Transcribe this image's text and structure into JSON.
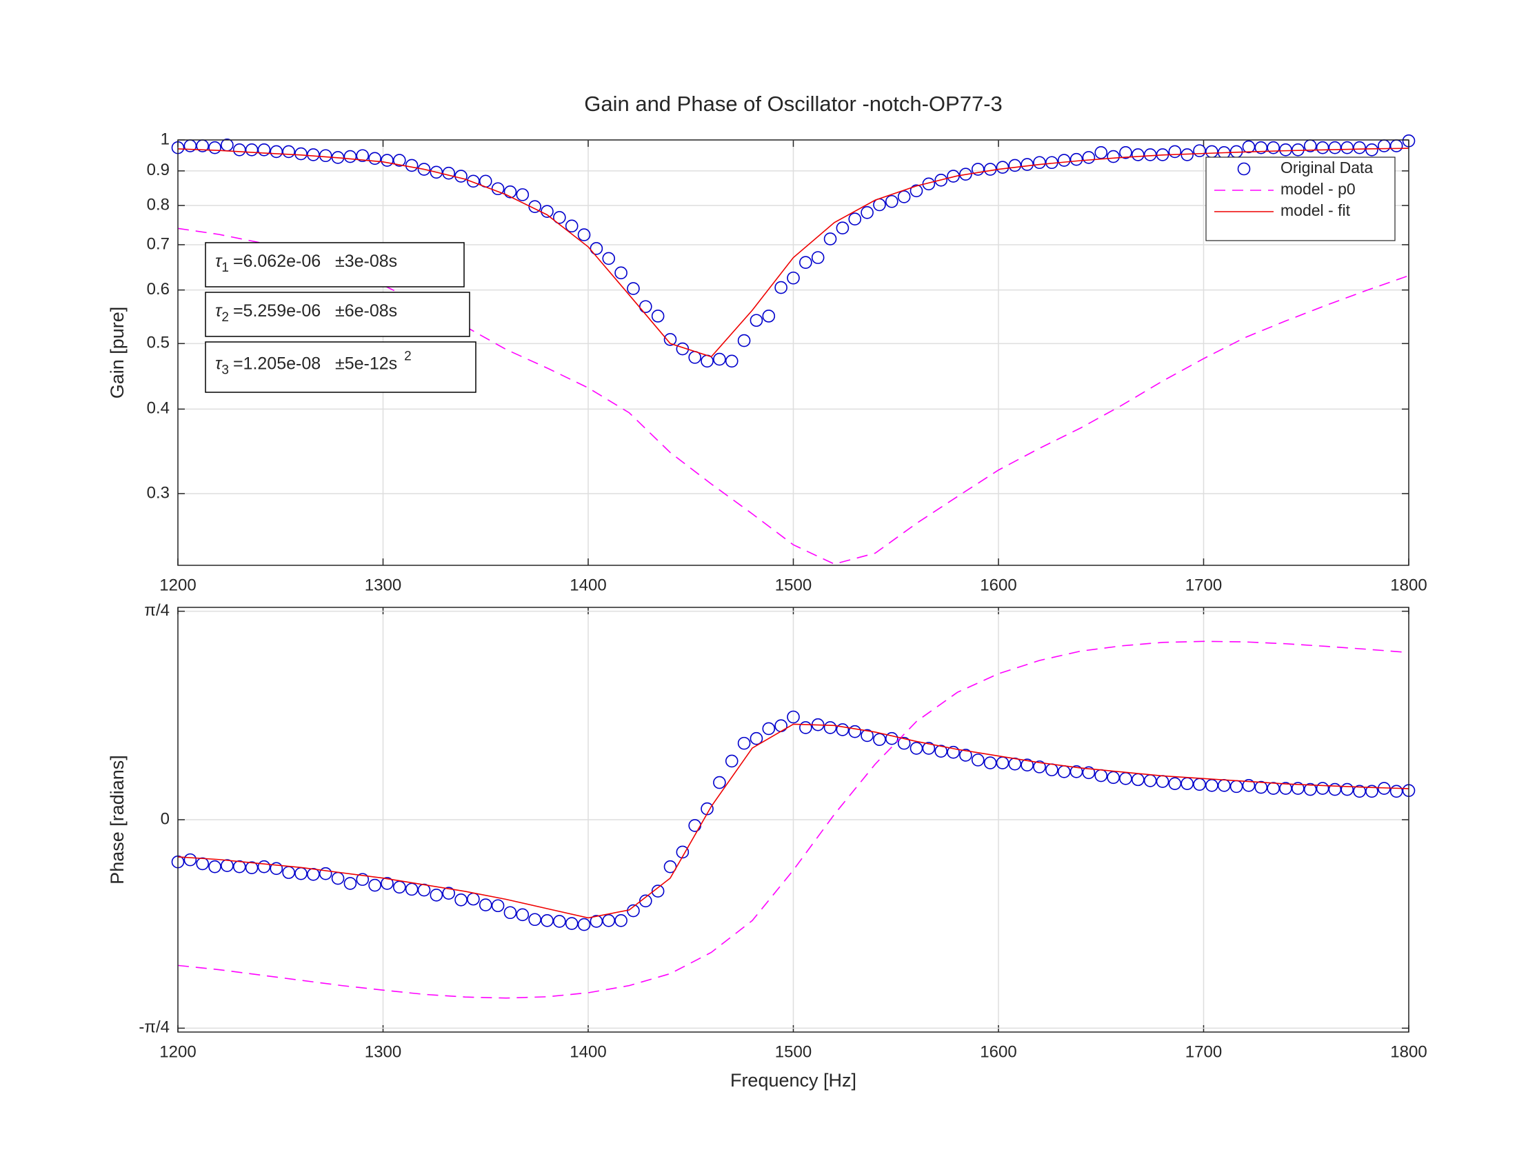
{
  "chart_data": [
    {
      "type": "line",
      "title": "Gain and Phase of Oscillator -notch-OP77-3",
      "ylabel": "Gain [pure]",
      "xlim": [
        1200,
        1800
      ],
      "xticks": [
        1200,
        1300,
        1400,
        1500,
        1600,
        1700,
        1800
      ],
      "ylim": [
        0.235,
        1
      ],
      "yticks": [
        0.3,
        0.4,
        0.5,
        0.6,
        0.7,
        0.8,
        0.9,
        1
      ],
      "log_y": true,
      "grid": true,
      "legend": "northeast",
      "series": [
        {
          "name": "Original Data",
          "color": "#0000cc",
          "marker": "o",
          "x": [
            1200,
            1206,
            1212,
            1218,
            1224,
            1230,
            1236,
            1242,
            1248,
            1254,
            1260,
            1266,
            1272,
            1278,
            1284,
            1290,
            1296,
            1302,
            1308,
            1314,
            1320,
            1326,
            1332,
            1338,
            1344,
            1350,
            1356,
            1362,
            1368,
            1374,
            1380,
            1386,
            1392,
            1398,
            1404,
            1410,
            1416,
            1422,
            1428,
            1434,
            1440,
            1446,
            1452,
            1458,
            1464,
            1470,
            1476,
            1482,
            1488,
            1494,
            1500,
            1506,
            1512,
            1518,
            1524,
            1530,
            1536,
            1542,
            1548,
            1554,
            1560,
            1566,
            1572,
            1578,
            1584,
            1590,
            1596,
            1602,
            1608,
            1614,
            1620,
            1626,
            1632,
            1638,
            1644,
            1650,
            1656,
            1662,
            1668,
            1674,
            1680,
            1686,
            1692,
            1698,
            1704,
            1710,
            1716,
            1722,
            1728,
            1734,
            1740,
            1746,
            1752,
            1758,
            1764,
            1770,
            1776,
            1782,
            1788,
            1794,
            1800
          ],
          "values": [
            0.974,
            0.98,
            0.98,
            0.974,
            0.983,
            0.967,
            0.967,
            0.967,
            0.961,
            0.961,
            0.954,
            0.951,
            0.948,
            0.942,
            0.945,
            0.948,
            0.939,
            0.933,
            0.933,
            0.917,
            0.905,
            0.896,
            0.893,
            0.884,
            0.869,
            0.869,
            0.847,
            0.838,
            0.83,
            0.797,
            0.784,
            0.768,
            0.746,
            0.724,
            0.691,
            0.668,
            0.636,
            0.603,
            0.567,
            0.549,
            0.507,
            0.491,
            0.477,
            0.471,
            0.474,
            0.471,
            0.505,
            0.541,
            0.549,
            0.605,
            0.625,
            0.659,
            0.67,
            0.714,
            0.741,
            0.764,
            0.781,
            0.802,
            0.811,
            0.824,
            0.841,
            0.861,
            0.872,
            0.884,
            0.89,
            0.905,
            0.905,
            0.911,
            0.917,
            0.92,
            0.926,
            0.926,
            0.933,
            0.936,
            0.942,
            0.958,
            0.945,
            0.958,
            0.951,
            0.951,
            0.951,
            0.961,
            0.951,
            0.964,
            0.961,
            0.958,
            0.961,
            0.977,
            0.974,
            0.974,
            0.967,
            0.967,
            0.98,
            0.974,
            0.974,
            0.974,
            0.974,
            0.967,
            0.98,
            0.98,
            0.997
          ]
        },
        {
          "name": "model - p0",
          "color": "#ff00ff",
          "linestyle": "--",
          "x": [
            1200,
            1220,
            1240,
            1260,
            1280,
            1300,
            1320,
            1340,
            1360,
            1380,
            1400,
            1420,
            1440,
            1460,
            1480,
            1500,
            1520,
            1540,
            1560,
            1580,
            1600,
            1620,
            1640,
            1660,
            1680,
            1700,
            1720,
            1740,
            1760,
            1780,
            1800
          ],
          "values": [
            0.74,
            0.725,
            0.705,
            0.68,
            0.645,
            0.61,
            0.57,
            0.53,
            0.49,
            0.46,
            0.43,
            0.395,
            0.345,
            0.31,
            0.28,
            0.252,
            0.236,
            0.245,
            0.271,
            0.297,
            0.325,
            0.35,
            0.375,
            0.405,
            0.44,
            0.475,
            0.51,
            0.54,
            0.57,
            0.6,
            0.63
          ]
        },
        {
          "name": "model - fit",
          "color": "#ee0000",
          "linestyle": "-",
          "x": [
            1200,
            1220,
            1240,
            1260,
            1280,
            1300,
            1320,
            1340,
            1360,
            1380,
            1400,
            1420,
            1440,
            1460,
            1480,
            1500,
            1520,
            1540,
            1560,
            1580,
            1600,
            1620,
            1640,
            1660,
            1680,
            1700,
            1720,
            1740,
            1760,
            1780,
            1800
          ],
          "values": [
            0.97,
            0.965,
            0.957,
            0.95,
            0.94,
            0.928,
            0.905,
            0.875,
            0.83,
            0.775,
            0.695,
            0.59,
            0.5,
            0.478,
            0.56,
            0.67,
            0.755,
            0.815,
            0.855,
            0.885,
            0.905,
            0.92,
            0.932,
            0.942,
            0.95,
            0.955,
            0.96,
            0.964,
            0.967,
            0.97,
            0.972
          ]
        }
      ],
      "annotations": [
        {
          "symbol": "τ",
          "subscript": "1",
          "text": "=6.062e-06   ±3e-08s"
        },
        {
          "symbol": "τ",
          "subscript": "2",
          "text": "=5.259e-06   ±6e-08s"
        },
        {
          "symbol": "τ",
          "subscript": "3",
          "text": "=1.205e-08   ±5e-12s",
          "superscript": "2"
        }
      ]
    },
    {
      "type": "line",
      "xlabel": "Frequency [Hz]",
      "ylabel": "Phase [radians]",
      "xlim": [
        1200,
        1800
      ],
      "xticks": [
        1200,
        1300,
        1400,
        1500,
        1600,
        1700,
        1800
      ],
      "ylim": [
        -0.8,
        0.8
      ],
      "yticks": [
        {
          "value": -0.7854,
          "label": "-π/4"
        },
        0,
        {
          "value": 0.7854,
          "label": "π/4"
        }
      ],
      "grid": true,
      "series": [
        {
          "color": "#0000cc",
          "marker": "o",
          "x": [
            1200,
            1206,
            1212,
            1218,
            1224,
            1230,
            1236,
            1242,
            1248,
            1254,
            1260,
            1266,
            1272,
            1278,
            1284,
            1290,
            1296,
            1302,
            1308,
            1314,
            1320,
            1326,
            1332,
            1338,
            1344,
            1350,
            1356,
            1362,
            1368,
            1374,
            1380,
            1386,
            1392,
            1398,
            1404,
            1410,
            1416,
            1422,
            1428,
            1434,
            1440,
            1446,
            1452,
            1458,
            1464,
            1470,
            1476,
            1482,
            1488,
            1494,
            1500,
            1506,
            1512,
            1518,
            1524,
            1530,
            1536,
            1542,
            1548,
            1554,
            1560,
            1566,
            1572,
            1578,
            1584,
            1590,
            1596,
            1602,
            1608,
            1614,
            1620,
            1626,
            1632,
            1638,
            1644,
            1650,
            1656,
            1662,
            1668,
            1674,
            1680,
            1686,
            1692,
            1698,
            1704,
            1710,
            1716,
            1722,
            1728,
            1734,
            1740,
            1746,
            1752,
            1758,
            1764,
            1770,
            1776,
            1782,
            1788,
            1794,
            1800
          ],
          "values": [
            -0.159,
            -0.151,
            -0.166,
            -0.177,
            -0.173,
            -0.177,
            -0.181,
            -0.177,
            -0.184,
            -0.199,
            -0.203,
            -0.206,
            -0.203,
            -0.221,
            -0.24,
            -0.225,
            -0.247,
            -0.24,
            -0.254,
            -0.262,
            -0.265,
            -0.284,
            -0.277,
            -0.302,
            -0.299,
            -0.321,
            -0.324,
            -0.35,
            -0.358,
            -0.376,
            -0.38,
            -0.383,
            -0.391,
            -0.395,
            -0.383,
            -0.38,
            -0.38,
            -0.343,
            -0.306,
            -0.269,
            -0.177,
            -0.122,
            -0.022,
            0.041,
            0.14,
            0.221,
            0.288,
            0.306,
            0.343,
            0.354,
            0.387,
            0.347,
            0.358,
            0.347,
            0.339,
            0.332,
            0.317,
            0.302,
            0.306,
            0.288,
            0.269,
            0.269,
            0.258,
            0.254,
            0.243,
            0.225,
            0.214,
            0.214,
            0.21,
            0.206,
            0.199,
            0.188,
            0.181,
            0.181,
            0.177,
            0.166,
            0.159,
            0.155,
            0.151,
            0.147,
            0.144,
            0.136,
            0.136,
            0.133,
            0.129,
            0.129,
            0.125,
            0.129,
            0.122,
            0.118,
            0.118,
            0.118,
            0.114,
            0.118,
            0.114,
            0.114,
            0.107,
            0.107,
            0.118,
            0.107,
            0.11
          ]
        },
        {
          "color": "#ff00ff",
          "linestyle": "--",
          "x": [
            1200,
            1220,
            1240,
            1260,
            1280,
            1300,
            1320,
            1340,
            1360,
            1380,
            1400,
            1420,
            1440,
            1460,
            1480,
            1500,
            1520,
            1540,
            1560,
            1580,
            1600,
            1620,
            1640,
            1660,
            1680,
            1700,
            1720,
            1740,
            1760,
            1780,
            1800
          ],
          "values": [
            -0.549,
            -0.565,
            -0.585,
            -0.605,
            -0.625,
            -0.642,
            -0.658,
            -0.668,
            -0.672,
            -0.667,
            -0.652,
            -0.625,
            -0.58,
            -0.5,
            -0.38,
            -0.19,
            0.02,
            0.21,
            0.37,
            0.48,
            0.55,
            0.6,
            0.635,
            0.655,
            0.668,
            0.672,
            0.67,
            0.663,
            0.653,
            0.642,
            0.63
          ]
        },
        {
          "color": "#ee0000",
          "linestyle": "-",
          "x": [
            1200,
            1220,
            1240,
            1260,
            1280,
            1300,
            1320,
            1340,
            1360,
            1380,
            1400,
            1420,
            1440,
            1460,
            1480,
            1500,
            1520,
            1540,
            1560,
            1580,
            1600,
            1620,
            1640,
            1660,
            1680,
            1700,
            1720,
            1740,
            1760,
            1780,
            1800
          ],
          "values": [
            -0.14,
            -0.15,
            -0.165,
            -0.18,
            -0.2,
            -0.22,
            -0.245,
            -0.27,
            -0.3,
            -0.335,
            -0.37,
            -0.34,
            -0.22,
            0.05,
            0.27,
            0.36,
            0.355,
            0.33,
            0.295,
            0.265,
            0.24,
            0.215,
            0.195,
            0.18,
            0.165,
            0.155,
            0.145,
            0.135,
            0.128,
            0.122,
            0.117
          ]
        }
      ]
    }
  ]
}
